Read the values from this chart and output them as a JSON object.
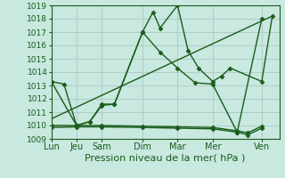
{
  "xlabel": "Pression niveau de la mer( hPa )",
  "ylim": [
    1009,
    1019
  ],
  "xlim": [
    0,
    6.5
  ],
  "yticks": [
    1009,
    1010,
    1011,
    1012,
    1013,
    1014,
    1015,
    1016,
    1017,
    1018,
    1019
  ],
  "xtick_labels": [
    "Lun",
    "Jeu",
    "Sam",
    "Dim",
    "Mar",
    "Mer",
    "Ven"
  ],
  "xtick_positions": [
    0.0,
    0.72,
    1.44,
    2.6,
    3.6,
    4.6,
    6.0
  ],
  "bg_color": "#c8e8e0",
  "grid_color": "#b0c8c0",
  "line_color": "#1a5c1a",
  "series": [
    {
      "x": [
        0.0,
        0.36,
        0.72,
        1.1,
        1.44,
        1.8,
        2.6,
        2.9,
        3.1,
        3.6,
        3.9,
        4.2,
        4.6,
        4.85,
        5.1,
        6.0,
        6.3
      ],
      "y": [
        1013.3,
        1013.1,
        1010.0,
        1010.3,
        1011.6,
        1011.6,
        1017.0,
        1018.5,
        1017.3,
        1019.0,
        1015.6,
        1014.3,
        1013.3,
        1013.7,
        1014.3,
        1013.3,
        1018.2
      ],
      "has_markers": true
    },
    {
      "x": [
        0.0,
        0.72,
        1.1,
        1.44,
        1.8,
        2.6,
        3.1,
        3.6,
        4.1,
        4.6,
        5.3,
        6.0
      ],
      "y": [
        1013.3,
        1010.0,
        1010.3,
        1011.5,
        1011.6,
        1017.0,
        1015.5,
        1014.3,
        1013.2,
        1013.1,
        1009.5,
        1018.0
      ],
      "has_markers": true
    },
    {
      "x": [
        0.0,
        6.3
      ],
      "y": [
        1010.5,
        1018.2
      ],
      "has_markers": false
    },
    {
      "x": [
        0.0,
        0.72,
        1.44,
        2.6,
        3.6,
        4.6,
        5.3,
        5.6,
        6.0
      ],
      "y": [
        1009.85,
        1009.9,
        1009.9,
        1009.85,
        1009.8,
        1009.75,
        1009.5,
        1009.3,
        1009.8
      ],
      "has_markers": true
    },
    {
      "x": [
        0.0,
        0.72,
        1.44,
        2.6,
        3.6,
        4.6,
        5.3,
        5.6,
        6.0
      ],
      "y": [
        1010.0,
        1010.0,
        1010.0,
        1009.95,
        1009.9,
        1009.85,
        1009.6,
        1009.45,
        1009.95
      ],
      "has_markers": true
    }
  ],
  "marker": "D",
  "markersize": 2.5,
  "linewidth": 1.0,
  "xlabel_fontsize": 8,
  "ytick_fontsize": 6.5,
  "xtick_fontsize": 7
}
